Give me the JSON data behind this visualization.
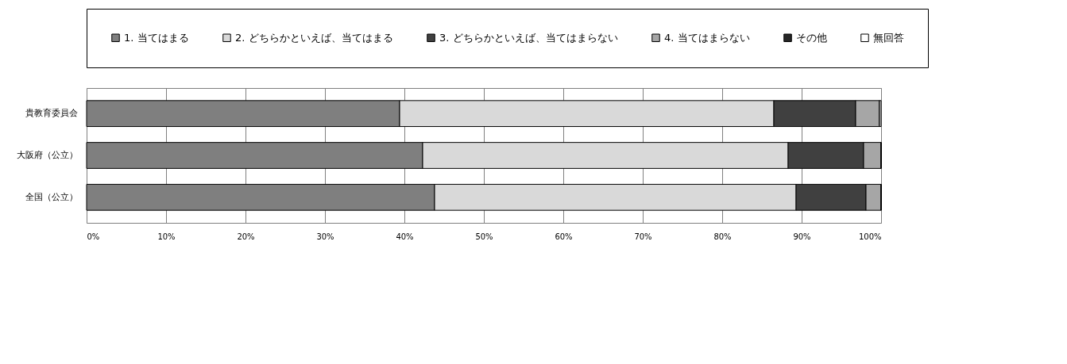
{
  "chart_data": {
    "type": "bar",
    "orientation": "horizontal",
    "stacked": true,
    "categories": [
      "貴教育委員会",
      "大阪府（公立）",
      "全国（公立）"
    ],
    "series": [
      {
        "name": "1. 当てはまる",
        "color": "#7f7f7f",
        "values": [
          39.4,
          42.3,
          43.8
        ]
      },
      {
        "name": "2. どちらかといえば、当てはまる",
        "color": "#d9d9d9",
        "values": [
          47.1,
          46.0,
          45.5
        ]
      },
      {
        "name": "3. どちらかといえば、当てはまらない",
        "color": "#404040",
        "values": [
          10.3,
          9.5,
          8.8
        ]
      },
      {
        "name": "4. 当てはまらない",
        "color": "#a6a6a6",
        "values": [
          3.0,
          2.2,
          1.9
        ]
      },
      {
        "name": "その他",
        "color": "#262626",
        "values": [
          0,
          0,
          0
        ]
      },
      {
        "name": "無回答",
        "color": "#ffffff",
        "values": [
          0.2,
          0,
          0
        ]
      }
    ],
    "xlim": [
      0,
      100
    ],
    "xticks": [
      {
        "value": 0,
        "label": "0%"
      },
      {
        "value": 10,
        "label": "10%"
      },
      {
        "value": 20,
        "label": "20%"
      },
      {
        "value": 30,
        "label": "30%"
      },
      {
        "value": 40,
        "label": "40%"
      },
      {
        "value": 50,
        "label": "50%"
      },
      {
        "value": 60,
        "label": "60%"
      },
      {
        "value": 70,
        "label": "70%"
      },
      {
        "value": 80,
        "label": "80%"
      },
      {
        "value": 90,
        "label": "90%"
      },
      {
        "value": 100,
        "label": "100%"
      }
    ],
    "grid": "x",
    "legend": "top"
  }
}
